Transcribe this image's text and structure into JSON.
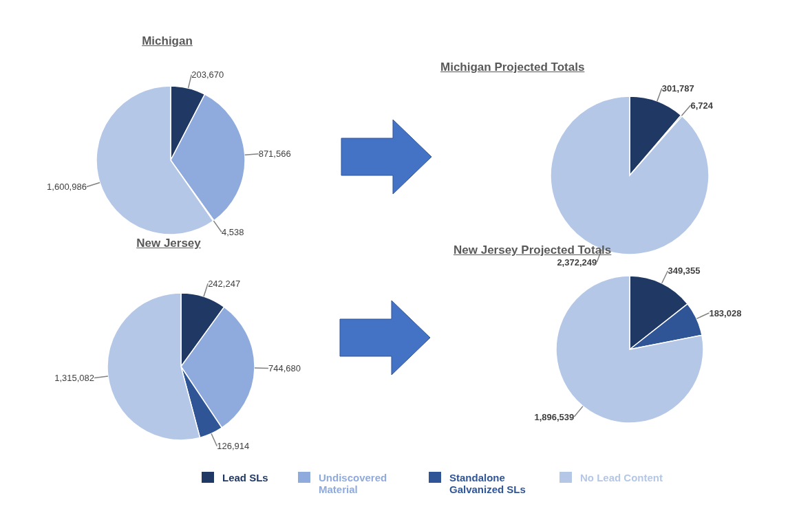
{
  "chart_data": [
    {
      "type": "pie",
      "title": "Michigan",
      "categories": [
        "Lead SLs",
        "Undiscovered Material",
        "Standalone Galvanized SLs",
        "No Lead Content"
      ],
      "values": [
        203670,
        871566,
        4538,
        1600986
      ],
      "value_labels": [
        "203,670",
        "871,566",
        "4,538",
        "1,600,986"
      ],
      "colors": [
        "#1f3864",
        "#8faadc",
        "#2f5597",
        "#b4c7e7"
      ],
      "legend": "bottom"
    },
    {
      "type": "pie",
      "title": "Michigan Projected Totals",
      "categories": [
        null,
        null,
        null
      ],
      "values": [
        301787,
        6724,
        2372249
      ],
      "value_labels": [
        "301,787",
        "6,724",
        "2,372,249"
      ],
      "colors": [
        "#1f3864",
        "#2f5597",
        "#b4c7e7"
      ]
    },
    {
      "type": "pie",
      "title": "New Jersey",
      "categories": [
        null,
        null,
        null,
        null
      ],
      "values": [
        242247,
        744680,
        126914,
        1315082
      ],
      "value_labels": [
        "242,247",
        "744,680",
        "126,914",
        "1,315,082"
      ],
      "colors": [
        "#1f3864",
        "#8faadc",
        "#2f5597",
        "#b4c7e7"
      ]
    },
    {
      "type": "pie",
      "title": "New Jersey Projected Totals",
      "categories": [
        null,
        null,
        null
      ],
      "values": [
        349355,
        183028,
        1896539
      ],
      "value_labels": [
        "349,355",
        "183,028",
        "1,896,539"
      ],
      "colors": [
        "#1f3864",
        "#2f5597",
        "#b4c7e7"
      ]
    }
  ]
}
